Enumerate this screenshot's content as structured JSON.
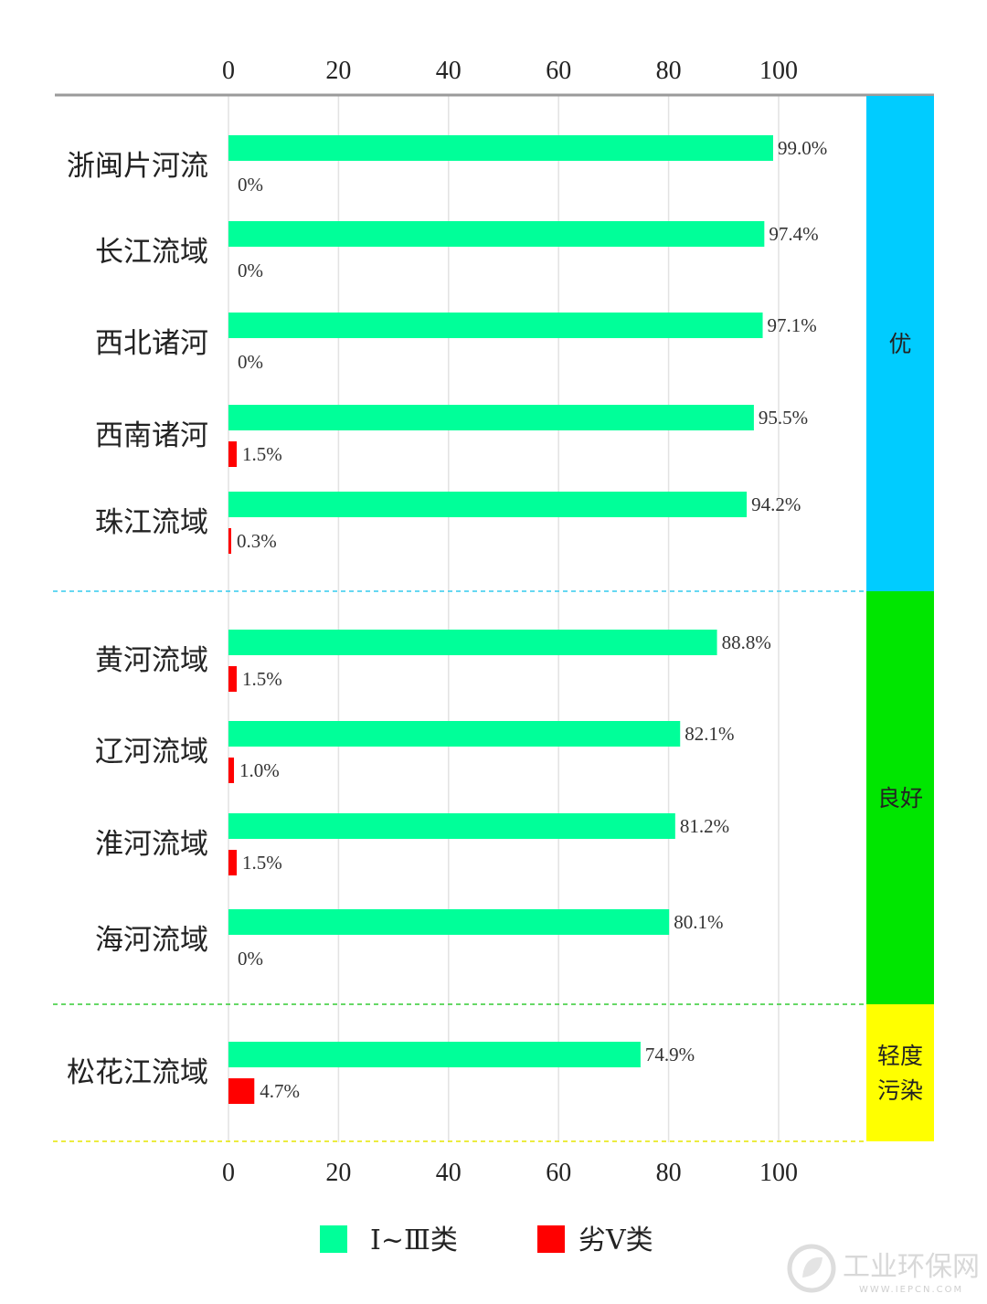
{
  "chart_data": {
    "type": "bar",
    "orientation": "horizontal",
    "xlim": [
      0,
      100
    ],
    "x_ticks": [
      "0",
      "20",
      "40",
      "60",
      "80",
      "100"
    ],
    "series": [
      {
        "name": "Ⅰ~Ⅲ类",
        "color": "#00ff99"
      },
      {
        "name": "劣Ⅴ类",
        "color": "#ff0000"
      }
    ],
    "categories": [
      {
        "name": "浙闽片河流",
        "values": [
          99.0,
          0
        ],
        "labels": [
          "99.0%",
          "0%"
        ],
        "group": 0
      },
      {
        "name": "长江流域",
        "values": [
          97.4,
          0
        ],
        "labels": [
          "97.4%",
          "0%"
        ],
        "group": 0
      },
      {
        "name": "西北诸河",
        "values": [
          97.1,
          0
        ],
        "labels": [
          "97.1%",
          "0%"
        ],
        "group": 0
      },
      {
        "name": "西南诸河",
        "values": [
          95.5,
          1.5
        ],
        "labels": [
          "95.5%",
          "1.5%"
        ],
        "group": 0
      },
      {
        "name": "珠江流域",
        "values": [
          94.2,
          0.3
        ],
        "labels": [
          "94.2%",
          "0.3%"
        ],
        "group": 0
      },
      {
        "name": "黄河流域",
        "values": [
          88.8,
          1.5
        ],
        "labels": [
          "88.8%",
          "1.5%"
        ],
        "group": 1
      },
      {
        "name": "辽河流域",
        "values": [
          82.1,
          1.0
        ],
        "labels": [
          "82.1%",
          "1.0%"
        ],
        "group": 1
      },
      {
        "name": "淮河流域",
        "values": [
          81.2,
          1.5
        ],
        "labels": [
          "81.2%",
          "1.5%"
        ],
        "group": 1
      },
      {
        "name": "海河流域",
        "values": [
          80.1,
          0
        ],
        "labels": [
          "80.1%",
          "0%"
        ],
        "group": 1
      },
      {
        "name": "松花江流域",
        "values": [
          74.9,
          4.7
        ],
        "labels": [
          "74.9%",
          "4.7%"
        ],
        "group": 2
      }
    ],
    "quality_bands": [
      {
        "label_lines": [
          "优"
        ],
        "color": "#00ccff",
        "divider_color": "#33ccee"
      },
      {
        "label_lines": [
          "良好"
        ],
        "color": "#00e600",
        "divider_color": "#33cc33"
      },
      {
        "label_lines": [
          "轻度",
          "污染"
        ],
        "color": "#ffff00",
        "divider_color": "#e6e600"
      }
    ],
    "grid": true,
    "legend_position": "bottom"
  },
  "watermark": {
    "text": "工业环保网",
    "sub": "WWW.IEPCN.COM"
  }
}
